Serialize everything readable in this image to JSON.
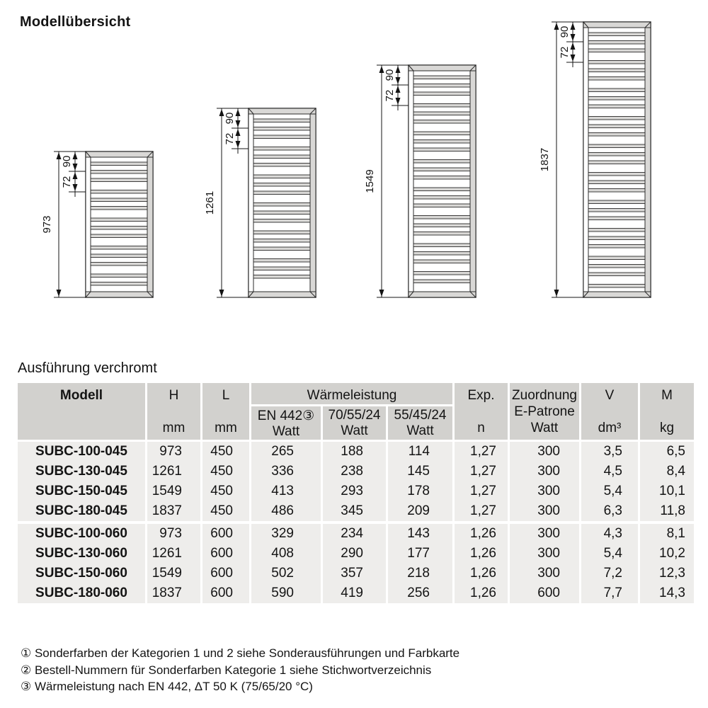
{
  "title": "Modellübersicht",
  "section_heading": "Ausführung verchromt",
  "diagrams": [
    {
      "height_mm": 973,
      "total_label": "973",
      "dim_top": "90",
      "dim_mid": "72"
    },
    {
      "height_mm": 1261,
      "total_label": "1261",
      "dim_top": "90",
      "dim_mid": "72"
    },
    {
      "height_mm": 1549,
      "total_label": "1549",
      "dim_top": "90",
      "dim_mid": "72"
    },
    {
      "height_mm": 1837,
      "total_label": "1837",
      "dim_top": "90",
      "dim_mid": "72"
    }
  ],
  "table": {
    "header": {
      "modell": "Modell",
      "h": "H",
      "h_unit": "mm",
      "l": "L",
      "l_unit": "mm",
      "waermeleistung": "Wärmeleistung",
      "sub": [
        {
          "label": "EN 442③",
          "unit": "Watt"
        },
        {
          "label": "70/55/24",
          "unit": "Watt"
        },
        {
          "label": "55/45/24",
          "unit": "Watt"
        }
      ],
      "exp": "Exp.",
      "exp_unit": "n",
      "zuordnung": "Zuordnung",
      "zuordnung_sub": "E-Patrone",
      "zuordnung_unit": "Watt",
      "v": "V",
      "v_unit": "dm³",
      "m": "M",
      "m_unit": "kg"
    },
    "rows": [
      [
        "SUBC-100-045",
        "973",
        "450",
        "265",
        "188",
        "114",
        "1,27",
        "300",
        "3,5",
        "6,5"
      ],
      [
        "SUBC-130-045",
        "1261",
        "450",
        "336",
        "238",
        "145",
        "1,27",
        "300",
        "4,5",
        "8,4"
      ],
      [
        "SUBC-150-045",
        "1549",
        "450",
        "413",
        "293",
        "178",
        "1,27",
        "300",
        "5,4",
        "10,1"
      ],
      [
        "SUBC-180-045",
        "1837",
        "450",
        "486",
        "345",
        "209",
        "1,27",
        "300",
        "6,3",
        "11,8"
      ],
      [
        "SUBC-100-060",
        "973",
        "600",
        "329",
        "234",
        "143",
        "1,26",
        "300",
        "4,3",
        "8,1"
      ],
      [
        "SUBC-130-060",
        "1261",
        "600",
        "408",
        "290",
        "177",
        "1,26",
        "300",
        "5,4",
        "10,2"
      ],
      [
        "SUBC-150-060",
        "1549",
        "600",
        "502",
        "357",
        "218",
        "1,26",
        "300",
        "7,2",
        "12,3"
      ],
      [
        "SUBC-180-060",
        "1837",
        "600",
        "590",
        "419",
        "256",
        "1,26",
        "600",
        "7,7",
        "14,3"
      ]
    ]
  },
  "footnotes": [
    "① Sonderfarben der Kategorien 1 und 2 siehe Sonderausführungen und Farbkarte",
    "② Bestell-Nummern für Sonderfarben Kategorie 1 siehe Stichwortverzeichnis",
    "③ Wärmeleistung nach EN 442, ΔT 50 K (75/65/20 °C)"
  ],
  "colors": {
    "header_bg": "#d2d1ce",
    "row_bg": "#eeedeb",
    "text": "#141414",
    "drawing_gray": "#d9d8d6",
    "outline": "#2b2b2b"
  }
}
